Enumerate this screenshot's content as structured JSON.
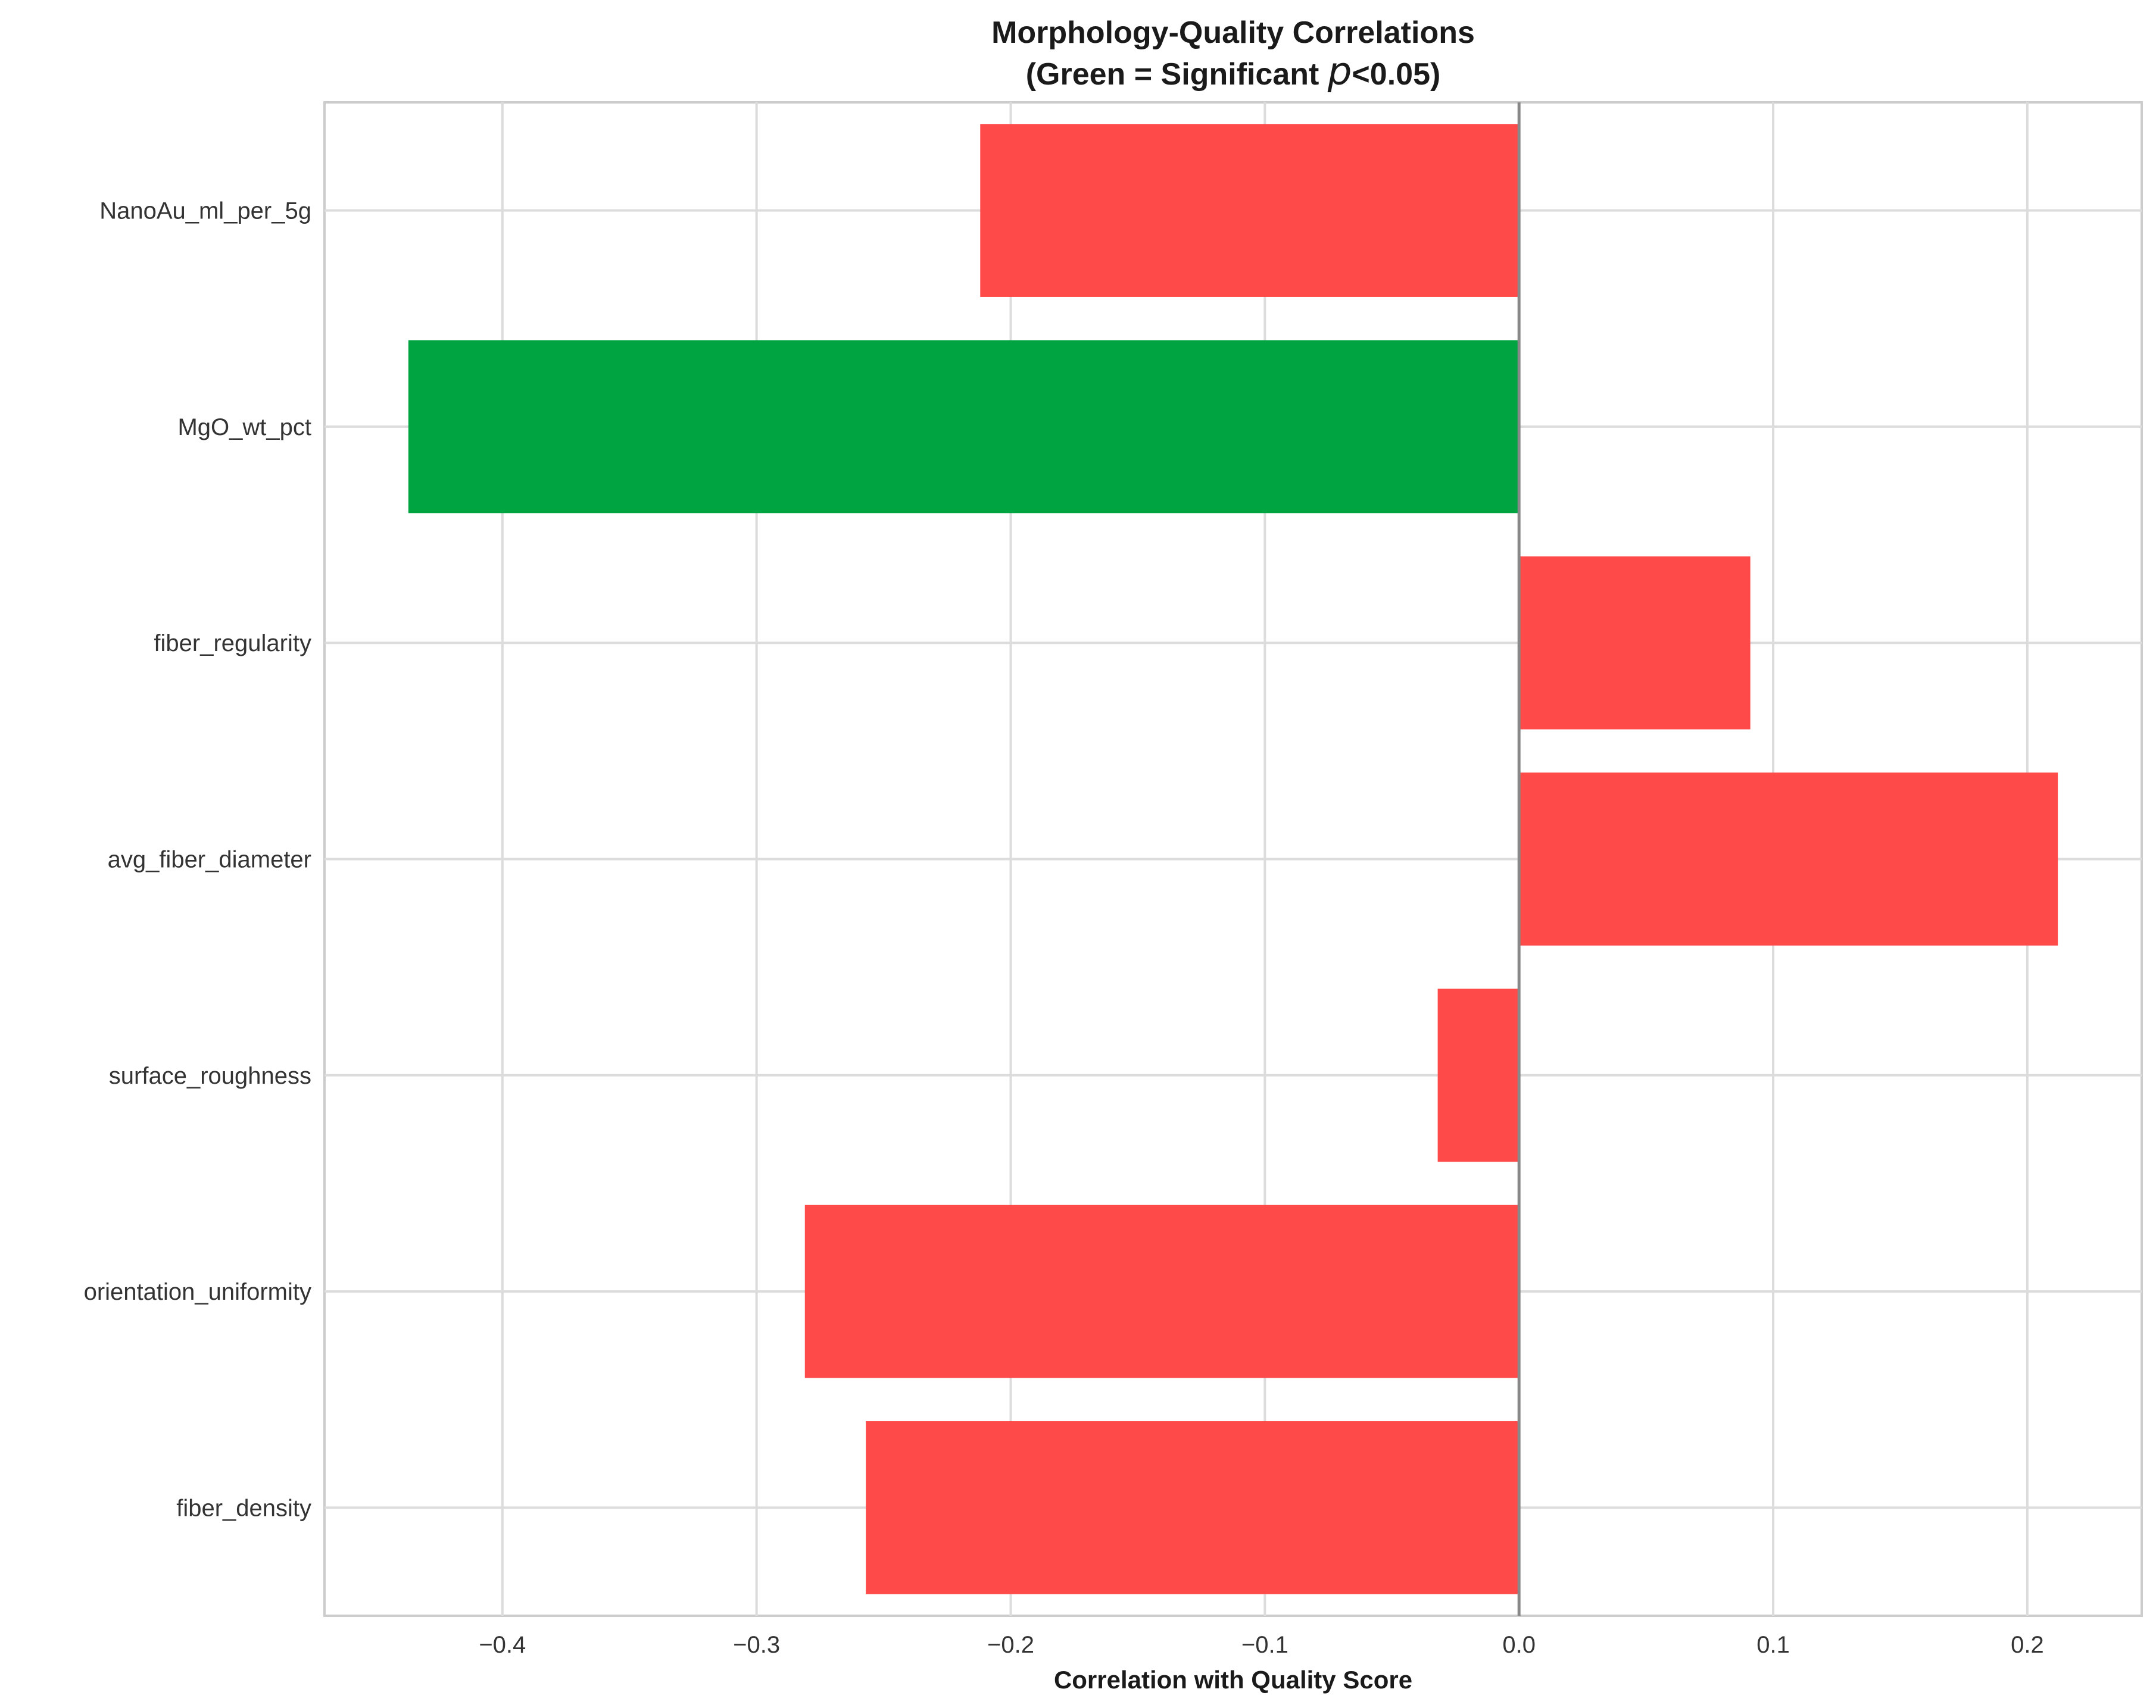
{
  "chart_data": {
    "type": "bar",
    "orientation": "horizontal",
    "title_line1": "Morphology-Quality Correlations",
    "title_line2_prefix": "(Green = Significant ",
    "title_line2_italic": "p",
    "title_line2_suffix": "<0.05)",
    "xlabel": "Correlation with Quality Score",
    "ylabel": "",
    "xlim": [
      -0.47,
      0.245
    ],
    "xticks": [
      -0.4,
      -0.3,
      -0.2,
      -0.1,
      0.0,
      0.1,
      0.2
    ],
    "xtick_labels": [
      "−0.4",
      "−0.3",
      "−0.2",
      "−0.1",
      "0.0",
      "0.1",
      "0.2"
    ],
    "grid": true,
    "categories": [
      "NanoAu_ml_per_5g",
      "MgO_wt_pct",
      "fiber_regularity",
      "avg_fiber_diameter",
      "surface_roughness",
      "orientation_uniformity",
      "fiber_density"
    ],
    "values": [
      -0.212,
      -0.437,
      0.091,
      0.212,
      -0.032,
      -0.281,
      -0.257
    ],
    "significant": [
      false,
      true,
      false,
      false,
      false,
      false,
      false
    ],
    "colors": {
      "significant": "#00a441",
      "not_significant": "#ff4a4a",
      "grid": "#dcdcdc",
      "frame": "#cccccc",
      "zero_line": "#888888"
    }
  }
}
